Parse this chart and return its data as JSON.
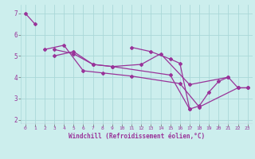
{
  "title": "Windchill (Refroidissement éolien,°C)",
  "bg_color": "#cceeed",
  "grid_color": "#aad8d8",
  "line_color": "#993399",
  "xlim": [
    -0.5,
    23.5
  ],
  "ylim": [
    1.8,
    7.4
  ],
  "xticks": [
    0,
    1,
    2,
    3,
    4,
    5,
    6,
    7,
    8,
    9,
    10,
    11,
    12,
    13,
    14,
    15,
    16,
    17,
    18,
    19,
    20,
    21,
    22,
    23
  ],
  "yticks": [
    2,
    3,
    4,
    5,
    6,
    7
  ],
  "series_data": [
    {
      "x": [
        0,
        1
      ],
      "y": [
        7.0,
        6.5
      ]
    },
    {
      "x": [
        2,
        4,
        6,
        8,
        11,
        16,
        18,
        22,
        23
      ],
      "y": [
        5.3,
        5.5,
        4.3,
        4.2,
        4.05,
        3.7,
        2.6,
        3.5,
        3.5
      ]
    },
    {
      "x": [
        3,
        5,
        7,
        9,
        15,
        17
      ],
      "y": [
        5.3,
        5.1,
        4.6,
        4.5,
        4.1,
        2.5
      ]
    },
    {
      "x": [
        3,
        5,
        7,
        9,
        12,
        14,
        17,
        21
      ],
      "y": [
        5.0,
        5.2,
        4.6,
        4.5,
        4.6,
        5.1,
        3.65,
        4.0
      ]
    },
    {
      "x": [
        11,
        13,
        15,
        16,
        17,
        18,
        19,
        20,
        21,
        22,
        23
      ],
      "y": [
        5.4,
        5.2,
        4.85,
        4.65,
        2.5,
        2.65,
        3.3,
        3.8,
        4.0,
        3.5,
        3.5
      ]
    }
  ]
}
